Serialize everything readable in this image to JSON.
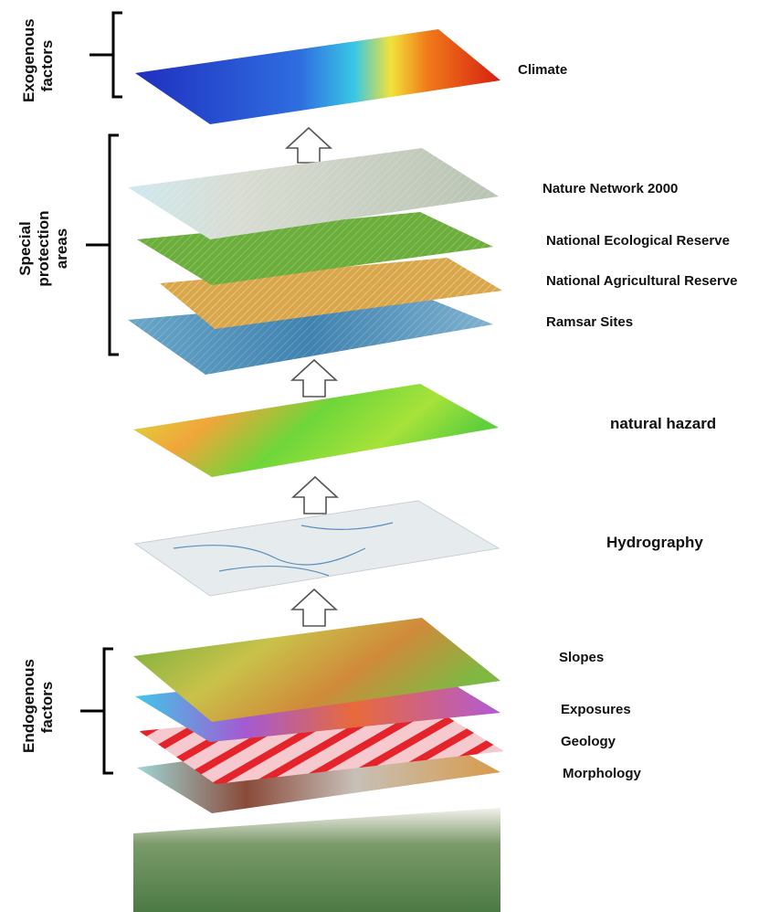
{
  "groups": {
    "exogenous": [
      "Exogenous",
      "factors"
    ],
    "special": [
      "Special",
      "protection",
      "areas"
    ],
    "endogenous": [
      "Endogenous",
      "factors"
    ]
  },
  "layers": {
    "climate": "Climate",
    "nature_network": "Nature Network 2000",
    "ecological_reserve": "National Ecological  Reserve",
    "agricultural_reserve": "National Agricultural Reserve",
    "ramsar": "Ramsar Sites",
    "natural_hazard": "natural hazard",
    "hydrography": "Hydrography",
    "slopes": "Slopes",
    "exposures": "Exposures",
    "geology": "Geology",
    "morphology": "Morphology"
  },
  "colors": {
    "climate_low": "#2a3fd6",
    "climate_high": "#e02a10",
    "nature_network": "#c9d4c4",
    "ecological_reserve": "#6cae3c",
    "agricultural_reserve": "#d9a64a",
    "ramsar": "#4e8fb8",
    "natural_hazard": "#7ad43a",
    "hydrography": "#e6ebee",
    "slopes": "#86b845",
    "exposures": "#9a5bd0",
    "geology": "#f6c9cf",
    "morphology": "#8a5a44",
    "photo": "#5f8b52",
    "arrow_stroke": "#555555"
  }
}
